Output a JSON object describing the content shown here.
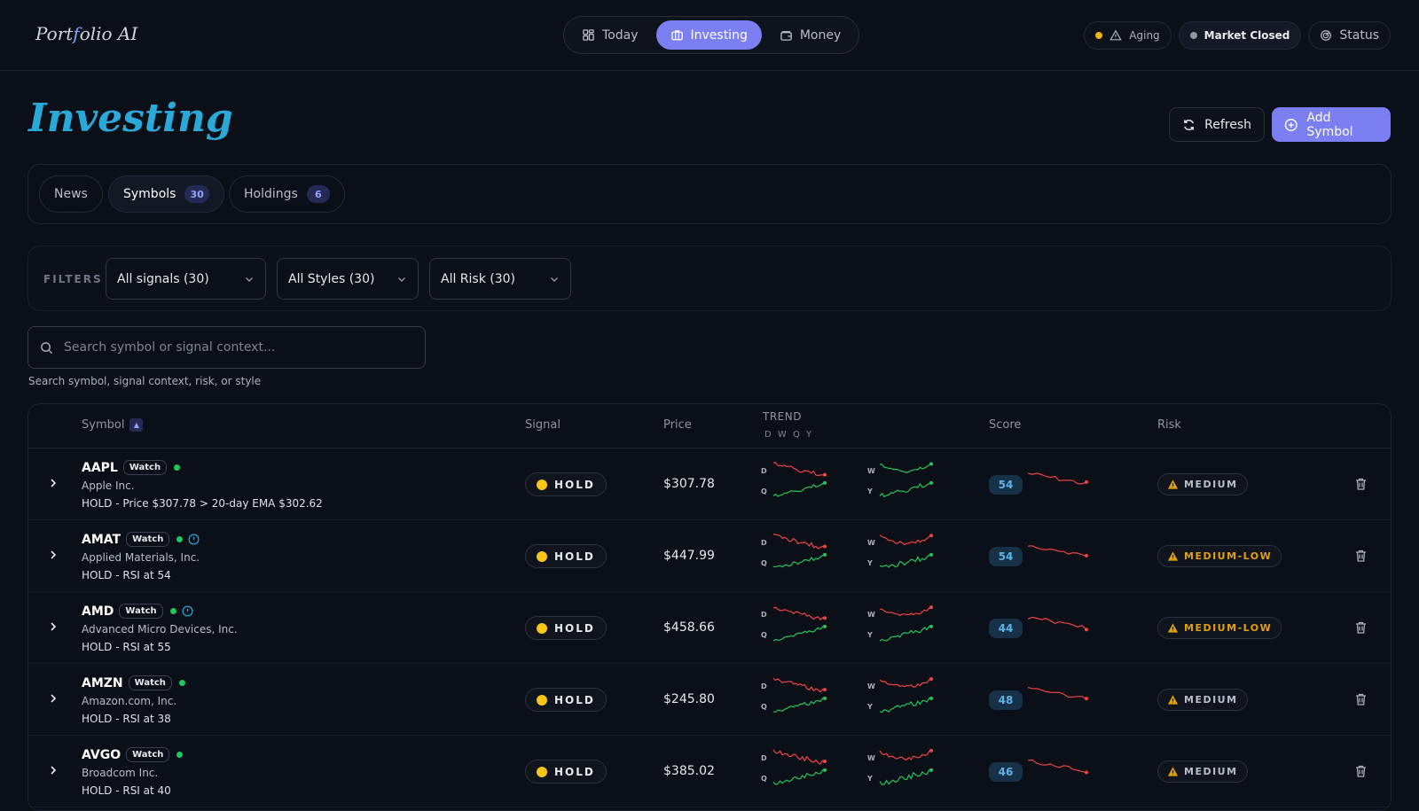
{
  "app": {
    "logo_pre": "Port",
    "logo_f": "f",
    "logo_post": "olio AI"
  },
  "nav": {
    "items": [
      {
        "label": "Today",
        "icon": "grid-icon"
      },
      {
        "label": "Investing",
        "icon": "briefcase-icon",
        "active": true
      },
      {
        "label": "Money",
        "icon": "wallet-icon"
      }
    ]
  },
  "status": {
    "aging": "Aging",
    "market": "Market Closed",
    "status": "Status"
  },
  "page": {
    "title": "Investing",
    "refresh_label": "Refresh",
    "add_label": "Add Symbol"
  },
  "tabs": [
    {
      "label": "News"
    },
    {
      "label": "Symbols",
      "count": "30",
      "active": true
    },
    {
      "label": "Holdings",
      "count": "6"
    }
  ],
  "filters": {
    "label": "FILTERS",
    "signals": "All signals (30)",
    "styles": "All Styles (30)",
    "risk": "All Risk (30)"
  },
  "search": {
    "placeholder": "Search symbol or signal context...",
    "help": "Search symbol, signal context, risk, or style"
  },
  "table": {
    "headers": {
      "symbol": "Symbol",
      "signal": "Signal",
      "price": "Price",
      "trend": "TREND",
      "trend_sub": "D W Q Y",
      "score": "Score",
      "risk": "Risk"
    },
    "rows": [
      {
        "ticker": "AAPL",
        "tag": "Watch",
        "info": false,
        "company": "Apple Inc.",
        "context": "HOLD - Price $307.78 > 20-day EMA $302.62",
        "signal": "HOLD",
        "price": "$307.78",
        "score": "54",
        "risk": "MEDIUM",
        "risk_level": "medium"
      },
      {
        "ticker": "AMAT",
        "tag": "Watch",
        "info": true,
        "company": "Applied Materials, Inc.",
        "context": "HOLD - RSI at 54",
        "signal": "HOLD",
        "price": "$447.99",
        "score": "54",
        "risk": "MEDIUM-LOW",
        "risk_level": "medium-low"
      },
      {
        "ticker": "AMD",
        "tag": "Watch",
        "info": true,
        "company": "Advanced Micro Devices, Inc.",
        "context": "HOLD - RSI at 55",
        "signal": "HOLD",
        "price": "$458.66",
        "score": "44",
        "risk": "MEDIUM-LOW",
        "risk_level": "medium-low"
      },
      {
        "ticker": "AMZN",
        "tag": "Watch",
        "info": false,
        "company": "Amazon.com, Inc.",
        "context": "HOLD - RSI at 38",
        "signal": "HOLD",
        "price": "$245.80",
        "score": "48",
        "risk": "MEDIUM",
        "risk_level": "medium"
      },
      {
        "ticker": "AVGO",
        "tag": "Watch",
        "info": false,
        "company": "Broadcom Inc.",
        "context": "HOLD - RSI at 40",
        "signal": "HOLD",
        "price": "$385.02",
        "score": "46",
        "risk": "MEDIUM",
        "risk_level": "medium"
      }
    ]
  },
  "colors": {
    "accent": "#7b7ff2",
    "title": "#2aa8d8",
    "up": "#22c55e",
    "down": "#ef4444",
    "warn": "#e3a008",
    "aging": "#eab308"
  }
}
